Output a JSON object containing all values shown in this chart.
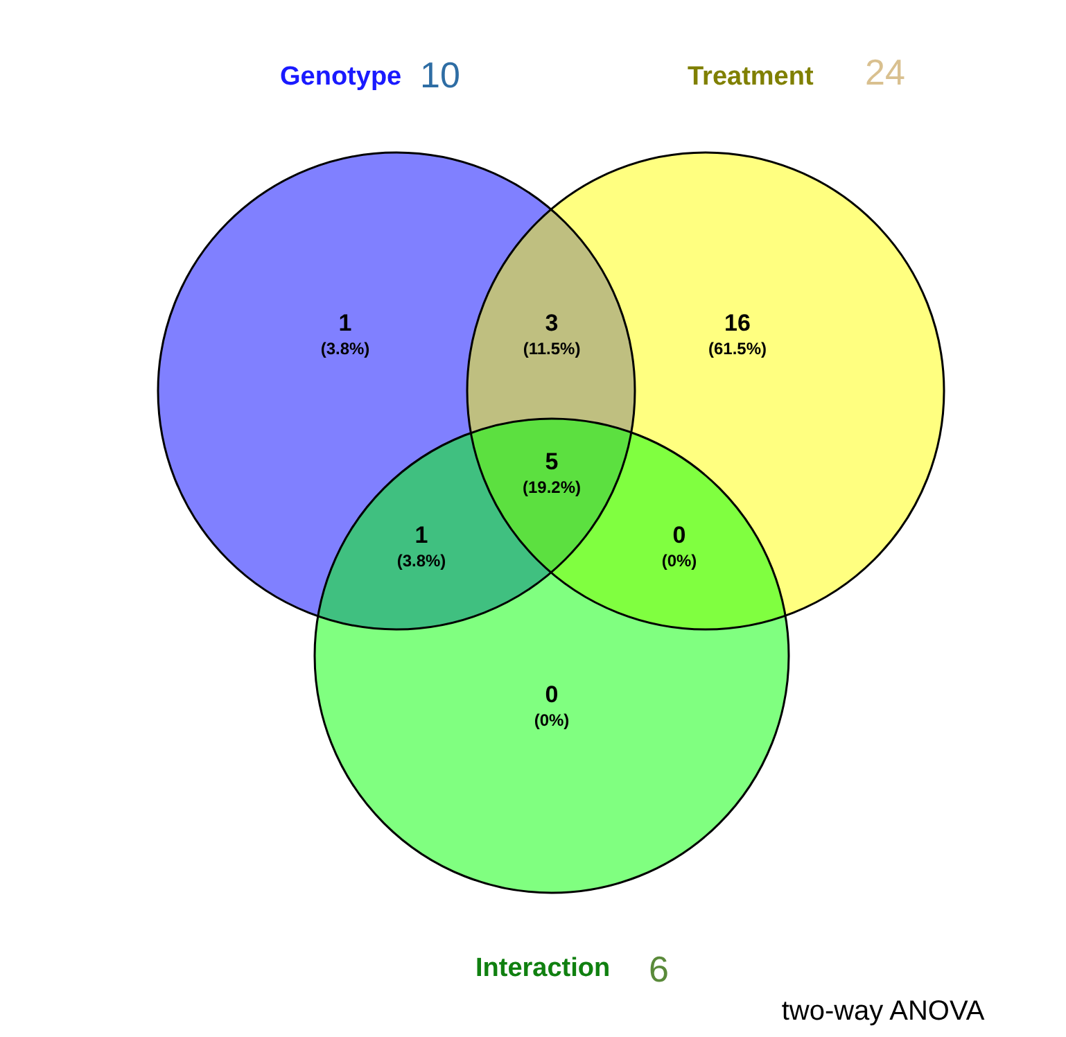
{
  "chart_data": {
    "type": "other",
    "categories": [
      null,
      null,
      null,
      null,
      null,
      null,
      null
    ],
    "values": [
      1,
      3,
      16,
      5,
      1,
      0,
      0
    ],
    "data_labels": true,
    "colors": [
      "#8080ff",
      "#bfbf80",
      "#ffff80",
      "#5ce040",
      "#40c080",
      "#80ff40",
      "#80ff80"
    ],
    "annotations": [
      "(3.8%)",
      "(11.5%)",
      "(61.5%)",
      "(19.2%)",
      "(3.8%)",
      "(0%)",
      "(0%)",
      "Genotype",
      "10",
      "Treatment",
      "24",
      "Interaction",
      "6",
      "two-way ANOVA"
    ]
  }
}
